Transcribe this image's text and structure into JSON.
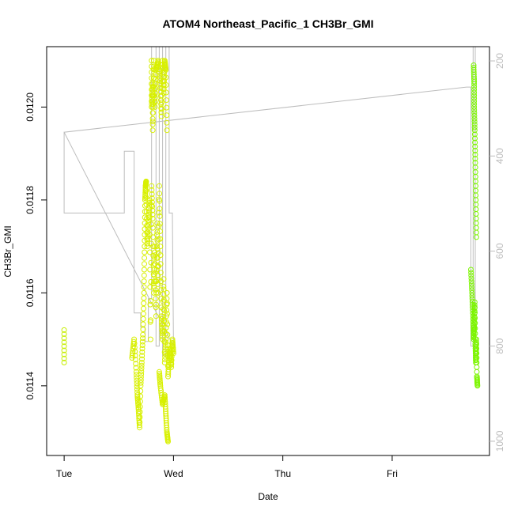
{
  "chart_data": {
    "type": "scatter",
    "title": "ATOM4 Northeast_Pacific_1 CH3Br_GMI",
    "xlabel": "Date",
    "ylabel": "CH3Br_GMI",
    "x_ticks": [
      "Tue",
      "Wed",
      "Thu",
      "Fri"
    ],
    "xlim_days": [
      -0.16,
      3.89
    ],
    "ylim": [
      0.01125,
      0.01213
    ],
    "y_ticks": [
      0.0114,
      0.0116,
      0.0118,
      0.012
    ],
    "y_tick_labels": [
      "0.0114",
      "0.0116",
      "0.0118",
      "0.0120"
    ],
    "y2_ticks": [
      200,
      400,
      600,
      800,
      1000
    ],
    "y2lim": [
      1030,
      170
    ],
    "grid": false,
    "colors": {
      "points_early": "#c6ee00",
      "points_mid": "#d8f000",
      "points_late": "#7cf500",
      "pressure_line": "#bdbdbd",
      "axis": "#000000",
      "axis_right": "#bdbdbd"
    },
    "series": [
      {
        "segments": [
          {
            "x": [
              0,
              0
            ],
            "y": [
              0.01145,
              0.01152
            ]
          },
          {
            "x": [
              0.62,
              0.64,
              0.66,
              0.67,
              0.68,
              0.69,
              0.7,
              0.71,
              0.72,
              0.73,
              0.735,
              0.74,
              0.745,
              0.75
            ],
            "y": [
              0.01146,
              0.0115,
              0.01143,
              0.01138,
              0.01135,
              0.01131,
              0.0114,
              0.01145,
              0.01151,
              0.0116,
              0.0117,
              0.0118,
              0.01183,
              0.01184
            ]
          },
          {
            "x": [
              0.75,
              0.76,
              0.77,
              0.78,
              0.79,
              0.8,
              0.81,
              0.82,
              0.83,
              0.84,
              0.85,
              0.86,
              0.87,
              0.88,
              0.89,
              0.9,
              0.91,
              0.92,
              0.93,
              0.94,
              0.95,
              0.96,
              0.97,
              0.98,
              0.99,
              1.0
            ],
            "y": [
              0.01182,
              0.0117,
              0.01175,
              0.0118,
              0.0115,
              0.01183,
              0.01176,
              0.0116,
              0.0117,
              0.01155,
              0.01175,
              0.0116,
              0.01183,
              0.0117,
              0.01155,
              0.0115,
              0.01163,
              0.01145,
              0.0115,
              0.0116,
              0.01142,
              0.01146,
              0.01148,
              0.01144,
              0.0115,
              0.01147
            ]
          },
          {
            "x": [
              0.8,
              0.8,
              0.81,
              0.81,
              0.82,
              0.83,
              0.84,
              0.86,
              0.88,
              0.89,
              0.9,
              0.91,
              0.92,
              0.93,
              0.94
            ],
            "y": [
              0.0121,
              0.012,
              0.01205,
              0.01195,
              0.0121,
              0.012,
              0.01208,
              0.0121,
              0.01205,
              0.01198,
              0.0121,
              0.01203,
              0.0121,
              0.01208,
              0.01195
            ]
          },
          {
            "x": [
              0.87,
              0.88,
              0.9,
              0.92,
              0.93,
              0.94,
              0.95
            ],
            "y": [
              0.01143,
              0.0114,
              0.01136,
              0.01138,
              0.01134,
              0.0113,
              0.01128
            ]
          },
          {
            "x": [
              3.72,
              3.73,
              3.74,
              3.745,
              3.75,
              3.755,
              3.76,
              3.765,
              3.77,
              3.775,
              3.78
            ],
            "y": [
              0.01165,
              0.0116,
              0.01155,
              0.0115,
              0.01153,
              0.01158,
              0.01149,
              0.01145,
              0.0115,
              0.01142,
              0.0114
            ]
          },
          {
            "x": [
              3.745,
              3.75,
              3.75,
              3.755,
              3.76,
              3.765,
              3.77
            ],
            "y": [
              0.01209,
              0.01205,
              0.012,
              0.01195,
              0.01188,
              0.0118,
              0.01172
            ]
          }
        ]
      }
    ],
    "pressure_line": {
      "x": [
        0,
        0,
        0.55,
        0.55,
        0.64,
        0.64,
        0.7,
        0.7,
        0.74,
        0.74,
        0.77,
        0.77,
        0.8,
        0.8,
        0.84,
        0.84,
        0.87,
        0.87,
        0.9,
        0.9,
        0.93,
        0.93,
        0.96,
        0.96,
        0.99,
        1.0,
        0.0,
        3.68,
        3.72,
        3.72,
        3.74,
        3.74,
        3.76,
        3.76,
        3.78
      ],
      "y": [
        350,
        520,
        520,
        390,
        390,
        730,
        730,
        760,
        760,
        790,
        790,
        700,
        700,
        150,
        150,
        800,
        800,
        150,
        150,
        820,
        820,
        150,
        150,
        520,
        520,
        800,
        350,
        255,
        255,
        800,
        800,
        150,
        150,
        820,
        820
      ]
    }
  }
}
